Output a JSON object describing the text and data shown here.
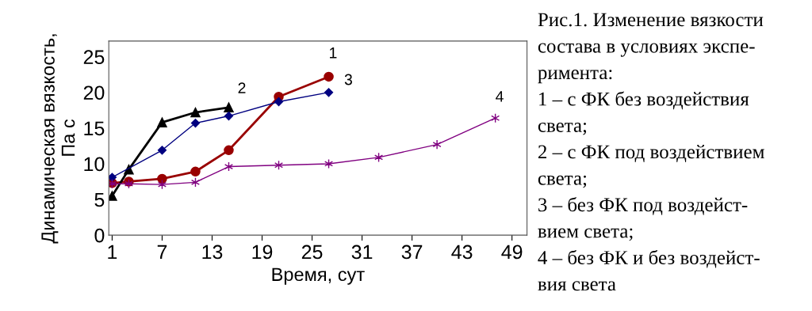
{
  "chart_data": {
    "type": "line",
    "xlabel": "Время, сут",
    "ylabel": "Динамическая вязкость,\nПа с",
    "xlim": [
      0.6,
      50.8
    ],
    "xticks": [
      1,
      7,
      13,
      19,
      25,
      31,
      37,
      43,
      49
    ],
    "ylim": [
      0,
      27.2
    ],
    "yticks": [
      0,
      5,
      10,
      15,
      20,
      25
    ],
    "grid": false,
    "legend": false,
    "series": [
      {
        "name": "1",
        "color": "#990000",
        "marker": "circle",
        "x": [
          1,
          3,
          7,
          11,
          15,
          21,
          27
        ],
        "values": [
          7.3,
          7.5,
          7.9,
          8.9,
          11.9,
          19.4,
          22.2
        ]
      },
      {
        "name": "2",
        "color": "#000000",
        "marker": "triangle",
        "x": [
          1,
          3,
          7,
          11,
          15
        ],
        "values": [
          5.5,
          9.2,
          15.8,
          17.2,
          17.9
        ]
      },
      {
        "name": "3",
        "color": "#000080",
        "marker": "diamond",
        "x": [
          1,
          7,
          11,
          15,
          21,
          27
        ],
        "values": [
          8.1,
          11.9,
          15.7,
          16.7,
          18.7,
          20.0
        ]
      },
      {
        "name": "4",
        "color": "#800080",
        "marker": "cross",
        "x": [
          1,
          3,
          7,
          11,
          15,
          21,
          27,
          33,
          40,
          47
        ],
        "values": [
          7.2,
          7.2,
          7.1,
          7.4,
          9.6,
          9.8,
          10.0,
          10.9,
          12.7,
          16.4
        ]
      }
    ],
    "annotations": [
      "Рис.1. Изменение вязкости",
      "состава в условиях экспе-",
      "римента:",
      "1 – с ФК без воздействия",
      "света;",
      "2 – с ФК под воздействием",
      "света;",
      "3 – без ФК под воздейст-",
      "вием света;",
      "4 – без ФК и без воздейст-",
      "вия света"
    ]
  }
}
